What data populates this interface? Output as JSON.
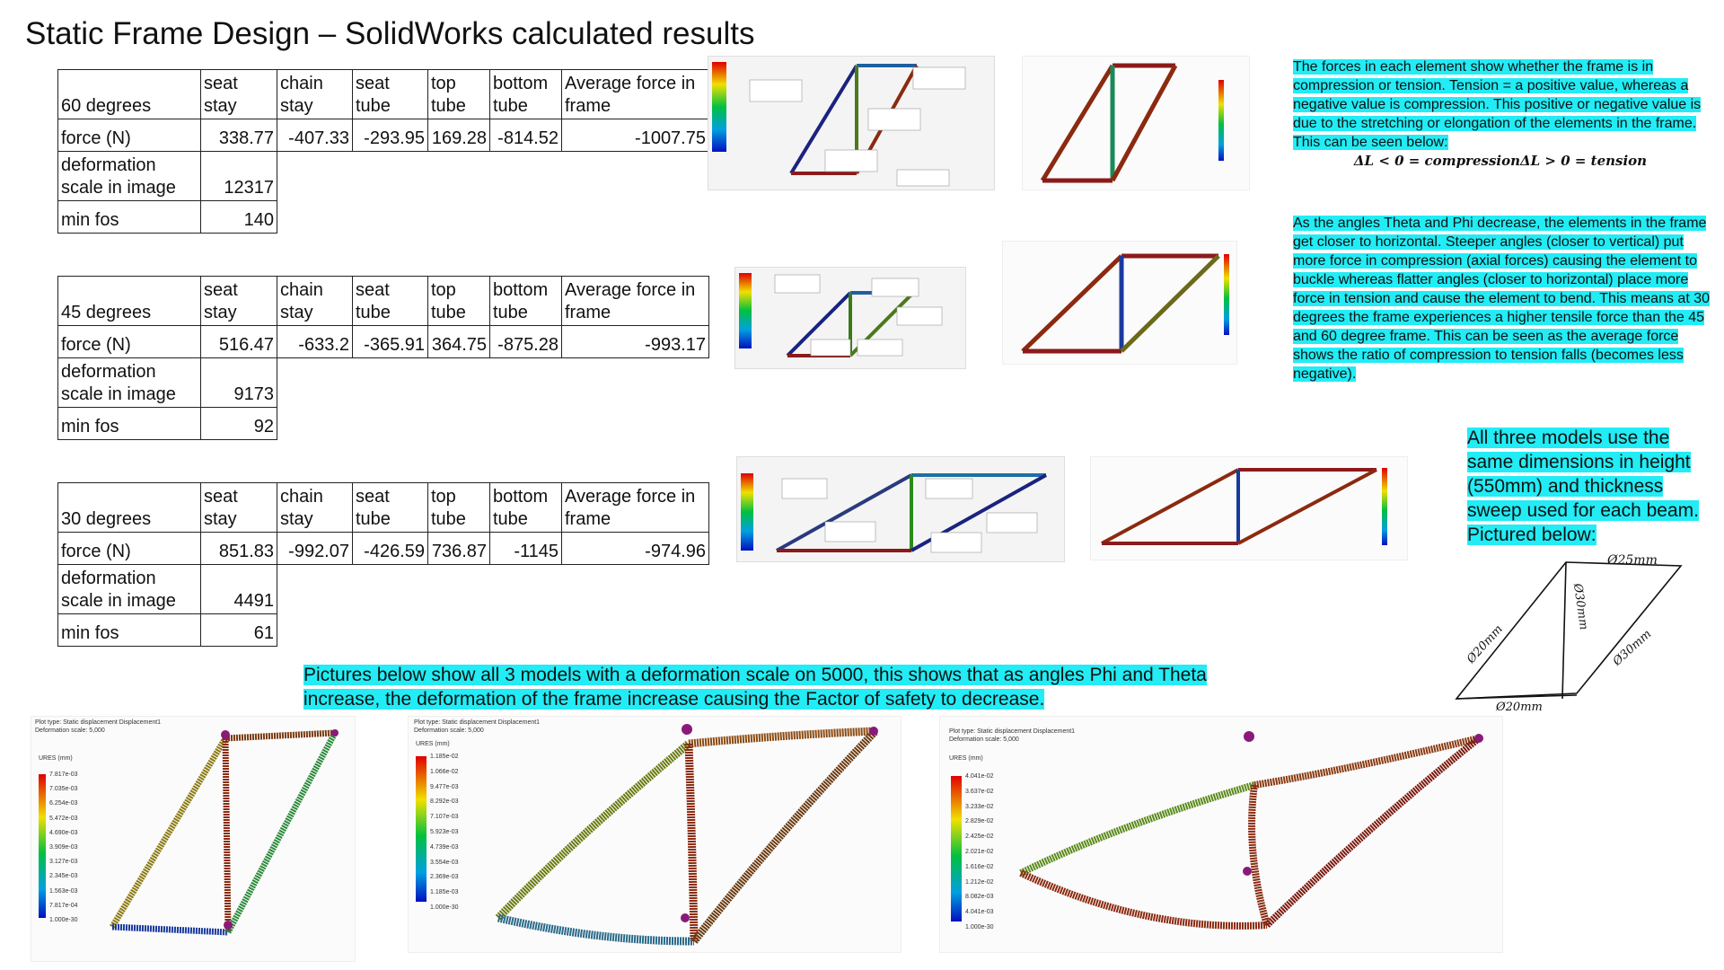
{
  "title": "Static Frame Design – SolidWorks calculated results",
  "column_headers": [
    "",
    "seat stay",
    "chain stay",
    "seat tube",
    "top tube",
    "bottom tube",
    "Average force in frame"
  ],
  "tables": [
    {
      "angle_label": "60 degrees",
      "force_label": "force (N)",
      "forces": [
        "338.77",
        "-407.33",
        "-293.95",
        "169.28",
        "-814.52",
        "-1007.75"
      ],
      "deformation_label": "deformation scale in image",
      "deformation_scale": "12317",
      "min_fos_label": "min fos",
      "min_fos": "140"
    },
    {
      "angle_label": "45 degrees",
      "force_label": "force (N)",
      "forces": [
        "516.47",
        "-633.2",
        "-365.91",
        "364.75",
        "-875.28",
        "-993.17"
      ],
      "deformation_label": "deformation scale in image",
      "deformation_scale": "9173",
      "min_fos_label": "min fos",
      "min_fos": "92"
    },
    {
      "angle_label": "30 degrees",
      "force_label": "force (N)",
      "forces": [
        "851.83",
        "-992.07",
        "-426.59",
        "736.87",
        "-1145",
        "-974.96"
      ],
      "deformation_label": "deformation scale in image",
      "deformation_scale": "4491",
      "min_fos_label": "min fos",
      "min_fos": "61"
    }
  ],
  "notes": {
    "forces_text": "The forces in each element show whether the frame is in compression or tension. Tension = a positive value, whereas a negative value is compression. This positive or negative value is due to the stretching or elongation of the elements in the frame. This can be seen below:",
    "equation": "ΔL < 0 = compressionΔL > 0 = tension",
    "angles_text": "As the angles Theta and Phi decrease, the elements in the frame get closer to horizontal. Steeper angles (closer to vertical) put more force in compression (axial forces) causing the element to buckle whereas flatter angles (closer to horizontal) place more force in tension and cause the element to bend. This means at 30 degrees the frame experiences a higher tensile force than the 45 and 60 degree frame. This can be seen as the average force shows the ratio of compression to tension falls (becomes less negative).",
    "dimensions_text": "All three models use the same dimensions in height (550mm) and thickness sweep used for each beam. Pictured below:",
    "caption": "Pictures below show all 3 models with a deformation scale on 5000, this shows that as angles Phi and Theta increase, the deformation of the frame increase causing the Factor of safety to decrease."
  },
  "sketch_labels": [
    "Ø25mm",
    "Ø30mm",
    "Ø20mm",
    "Ø30mm",
    "Ø20mm"
  ],
  "plots": [
    {
      "header": "Plot type: Static displacement Displacement1",
      "scale": "Deformation scale: 5,000",
      "unit": "URES (mm)",
      "ticks": [
        "7.817e-03",
        "7.035e-03",
        "6.254e-03",
        "5.472e-03",
        "4.690e-03",
        "3.909e-03",
        "3.127e-03",
        "2.345e-03",
        "1.563e-03",
        "7.817e-04",
        "1.000e-30"
      ]
    },
    {
      "header": "Plot type: Static displacement Displacement1",
      "scale": "Deformation scale: 5,000",
      "unit": "URES (mm)",
      "ticks": [
        "1.185e-02",
        "1.066e-02",
        "9.477e-03",
        "8.292e-03",
        "7.107e-03",
        "5.923e-03",
        "4.739e-03",
        "3.554e-03",
        "2.369e-03",
        "1.185e-03",
        "1.000e-30"
      ]
    },
    {
      "header": "Plot type: Static displacement Displacement1",
      "scale": "Deformation scale: 5,000",
      "unit": "URES (mm)",
      "ticks": [
        "4.041e-02",
        "3.637e-02",
        "3.233e-02",
        "2.829e-02",
        "2.425e-02",
        "2.021e-02",
        "1.616e-02",
        "1.212e-02",
        "8.082e-03",
        "4.041e-03",
        "1.000e-30"
      ]
    }
  ],
  "colors": {
    "highlight": "#22ecf5",
    "tension": "#8b1a1a",
    "compression": "#1a237e",
    "neutral": "#4a7a1a"
  }
}
